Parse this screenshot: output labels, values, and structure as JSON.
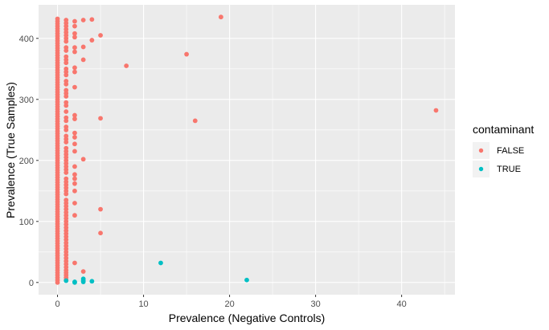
{
  "chart_data": {
    "type": "scatter",
    "title": "",
    "xlabel": "Prevalence (Negative Controls)",
    "ylabel": "Prevalence (True Samples)",
    "xlim": [
      -2.2,
      46.2
    ],
    "ylim": [
      -20,
      455
    ],
    "x_ticks": [
      0,
      10,
      20,
      30,
      40
    ],
    "y_ticks": [
      0,
      100,
      200,
      300,
      400
    ],
    "grid": true,
    "legend": {
      "title": "contaminant",
      "placement": "right",
      "entries": [
        "FALSE",
        "TRUE"
      ]
    },
    "colors": {
      "FALSE": "#F8766D",
      "TRUE": "#00BFC4",
      "panel": "#EBEBEB",
      "grid": "#FFFFFF"
    },
    "series": [
      {
        "name": "FALSE",
        "color": "#F8766D",
        "points": [
          [
            0,
            0
          ],
          [
            0,
            4
          ],
          [
            0,
            8
          ],
          [
            0,
            12
          ],
          [
            0,
            16
          ],
          [
            0,
            20
          ],
          [
            0,
            24
          ],
          [
            0,
            28
          ],
          [
            0,
            32
          ],
          [
            0,
            36
          ],
          [
            0,
            40
          ],
          [
            0,
            44
          ],
          [
            0,
            48
          ],
          [
            0,
            52
          ],
          [
            0,
            56
          ],
          [
            0,
            60
          ],
          [
            0,
            64
          ],
          [
            0,
            68
          ],
          [
            0,
            72
          ],
          [
            0,
            76
          ],
          [
            0,
            80
          ],
          [
            0,
            84
          ],
          [
            0,
            88
          ],
          [
            0,
            92
          ],
          [
            0,
            96
          ],
          [
            0,
            100
          ],
          [
            0,
            104
          ],
          [
            0,
            108
          ],
          [
            0,
            112
          ],
          [
            0,
            116
          ],
          [
            0,
            120
          ],
          [
            0,
            124
          ],
          [
            0,
            128
          ],
          [
            0,
            132
          ],
          [
            0,
            136
          ],
          [
            0,
            140
          ],
          [
            0,
            144
          ],
          [
            0,
            148
          ],
          [
            0,
            152
          ],
          [
            0,
            156
          ],
          [
            0,
            160
          ],
          [
            0,
            164
          ],
          [
            0,
            168
          ],
          [
            0,
            172
          ],
          [
            0,
            176
          ],
          [
            0,
            180
          ],
          [
            0,
            184
          ],
          [
            0,
            188
          ],
          [
            0,
            192
          ],
          [
            0,
            196
          ],
          [
            0,
            200
          ],
          [
            0,
            204
          ],
          [
            0,
            208
          ],
          [
            0,
            212
          ],
          [
            0,
            216
          ],
          [
            0,
            220
          ],
          [
            0,
            224
          ],
          [
            0,
            228
          ],
          [
            0,
            232
          ],
          [
            0,
            236
          ],
          [
            0,
            240
          ],
          [
            0,
            244
          ],
          [
            0,
            248
          ],
          [
            0,
            252
          ],
          [
            0,
            256
          ],
          [
            0,
            260
          ],
          [
            0,
            264
          ],
          [
            0,
            268
          ],
          [
            0,
            272
          ],
          [
            0,
            276
          ],
          [
            0,
            280
          ],
          [
            0,
            284
          ],
          [
            0,
            288
          ],
          [
            0,
            292
          ],
          [
            0,
            296
          ],
          [
            0,
            300
          ],
          [
            0,
            304
          ],
          [
            0,
            308
          ],
          [
            0,
            312
          ],
          [
            0,
            316
          ],
          [
            0,
            320
          ],
          [
            0,
            324
          ],
          [
            0,
            328
          ],
          [
            0,
            332
          ],
          [
            0,
            336
          ],
          [
            0,
            340
          ],
          [
            0,
            344
          ],
          [
            0,
            348
          ],
          [
            0,
            352
          ],
          [
            0,
            356
          ],
          [
            0,
            360
          ],
          [
            0,
            364
          ],
          [
            0,
            368
          ],
          [
            0,
            372
          ],
          [
            0,
            376
          ],
          [
            0,
            380
          ],
          [
            0,
            384
          ],
          [
            0,
            388
          ],
          [
            0,
            392
          ],
          [
            0,
            396
          ],
          [
            0,
            400
          ],
          [
            0,
            404
          ],
          [
            0,
            408
          ],
          [
            0,
            412
          ],
          [
            0,
            416
          ],
          [
            0,
            420
          ],
          [
            0,
            424
          ],
          [
            0,
            428
          ],
          [
            0,
            432
          ],
          [
            1,
            4
          ],
          [
            1,
            8
          ],
          [
            1,
            12
          ],
          [
            1,
            16
          ],
          [
            1,
            20
          ],
          [
            1,
            25
          ],
          [
            1,
            30
          ],
          [
            1,
            35
          ],
          [
            1,
            40
          ],
          [
            1,
            45
          ],
          [
            1,
            50
          ],
          [
            1,
            55
          ],
          [
            1,
            60
          ],
          [
            1,
            65
          ],
          [
            1,
            70
          ],
          [
            1,
            75
          ],
          [
            1,
            80
          ],
          [
            1,
            85
          ],
          [
            1,
            90
          ],
          [
            1,
            95
          ],
          [
            1,
            100
          ],
          [
            1,
            105
          ],
          [
            1,
            110
          ],
          [
            1,
            115
          ],
          [
            1,
            120
          ],
          [
            1,
            125
          ],
          [
            1,
            130
          ],
          [
            1,
            135
          ],
          [
            1,
            145
          ],
          [
            1,
            150
          ],
          [
            1,
            155
          ],
          [
            1,
            160
          ],
          [
            1,
            165
          ],
          [
            1,
            170
          ],
          [
            1,
            180
          ],
          [
            1,
            185
          ],
          [
            1,
            190
          ],
          [
            1,
            195
          ],
          [
            1,
            200
          ],
          [
            1,
            205
          ],
          [
            1,
            210
          ],
          [
            1,
            215
          ],
          [
            1,
            220
          ],
          [
            1,
            230
          ],
          [
            1,
            235
          ],
          [
            1,
            240
          ],
          [
            1,
            250
          ],
          [
            1,
            255
          ],
          [
            1,
            265
          ],
          [
            1,
            270
          ],
          [
            1,
            280
          ],
          [
            1,
            290
          ],
          [
            1,
            295
          ],
          [
            1,
            305
          ],
          [
            1,
            310
          ],
          [
            1,
            315
          ],
          [
            1,
            325
          ],
          [
            1,
            330
          ],
          [
            1,
            340
          ],
          [
            1,
            345
          ],
          [
            1,
            350
          ],
          [
            1,
            360
          ],
          [
            1,
            365
          ],
          [
            1,
            370
          ],
          [
            1,
            380
          ],
          [
            1,
            385
          ],
          [
            1,
            395
          ],
          [
            1,
            400
          ],
          [
            1,
            405
          ],
          [
            1,
            410
          ],
          [
            1,
            415
          ],
          [
            1,
            420
          ],
          [
            1,
            425
          ],
          [
            1,
            430
          ],
          [
            2,
            32
          ],
          [
            2,
            110
          ],
          [
            2,
            130
          ],
          [
            2,
            150
          ],
          [
            2,
            162
          ],
          [
            2,
            170
          ],
          [
            2,
            177
          ],
          [
            2,
            190
          ],
          [
            2,
            215
          ],
          [
            2,
            227
          ],
          [
            2,
            238
          ],
          [
            2,
            245
          ],
          [
            2,
            268
          ],
          [
            2,
            274
          ],
          [
            2,
            320
          ],
          [
            2,
            345
          ],
          [
            2,
            352
          ],
          [
            2,
            378
          ],
          [
            2,
            385
          ],
          [
            2,
            402
          ],
          [
            2,
            408
          ],
          [
            2,
            420
          ],
          [
            2,
            428
          ],
          [
            3,
            18
          ],
          [
            3,
            202
          ],
          [
            3,
            365
          ],
          [
            3,
            386
          ],
          [
            3,
            430
          ],
          [
            4,
            397
          ],
          [
            4,
            431
          ],
          [
            5,
            81
          ],
          [
            5,
            120
          ],
          [
            5,
            269
          ],
          [
            5,
            405
          ],
          [
            8,
            355
          ],
          [
            15,
            374
          ],
          [
            16,
            265
          ],
          [
            19,
            435
          ],
          [
            44,
            282
          ]
        ]
      },
      {
        "name": "TRUE",
        "color": "#00BFC4",
        "points": [
          [
            1,
            3
          ],
          [
            2,
            0
          ],
          [
            2,
            1
          ],
          [
            3,
            1
          ],
          [
            3,
            3
          ],
          [
            3,
            6
          ],
          [
            4,
            2
          ],
          [
            12,
            32
          ],
          [
            22,
            4
          ]
        ]
      }
    ]
  }
}
